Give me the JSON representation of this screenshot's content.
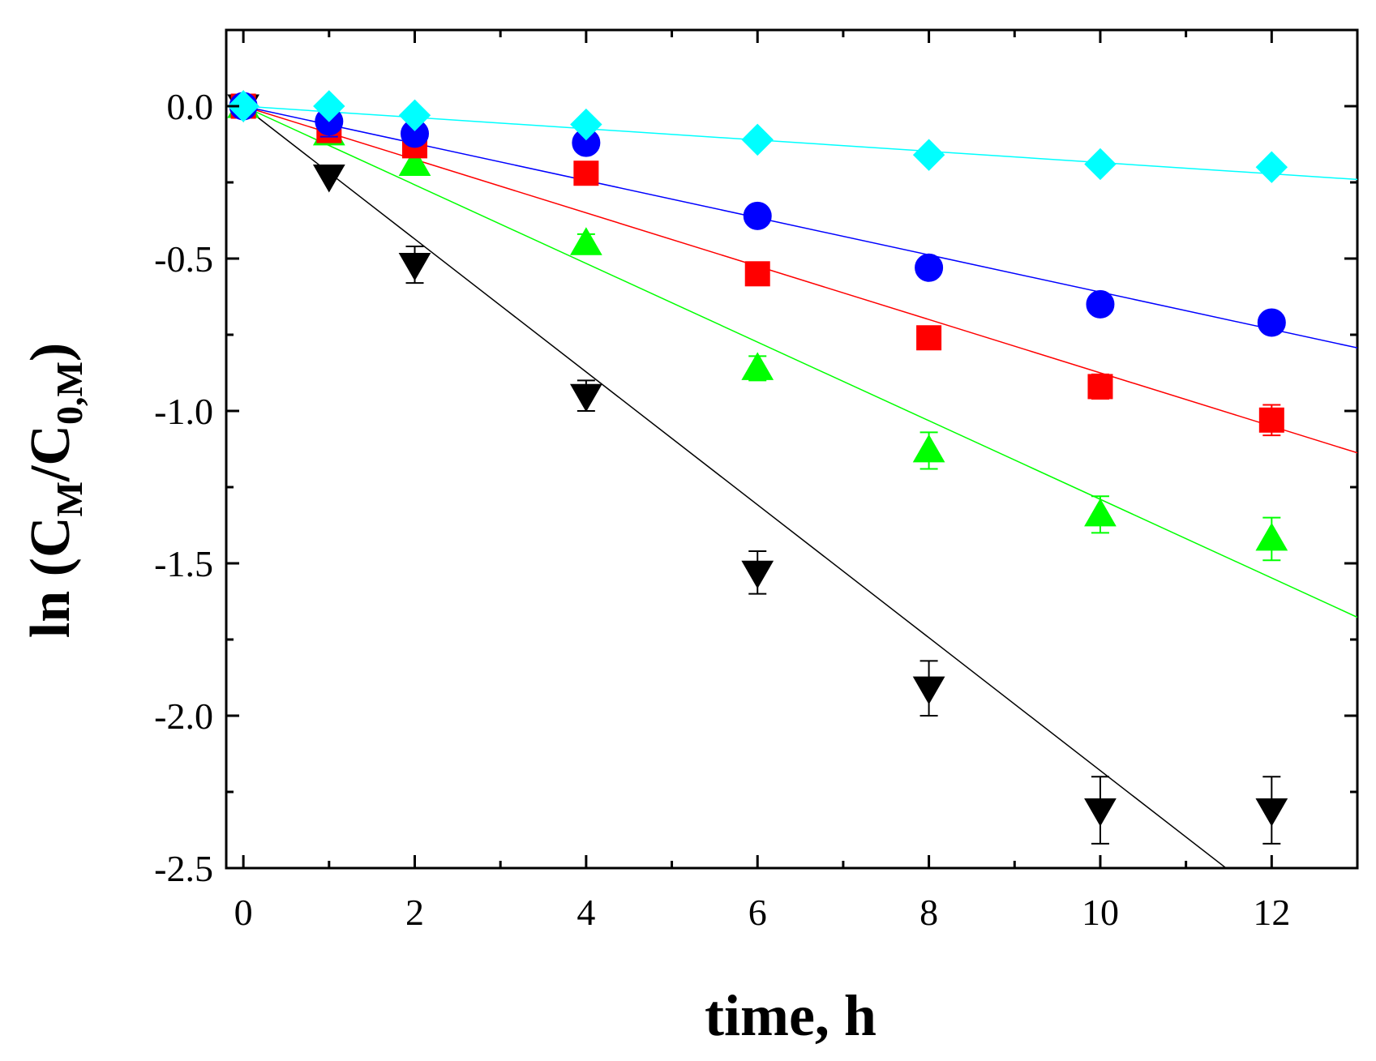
{
  "chart_data": {
    "type": "scatter",
    "title": "",
    "xlabel": "time, h",
    "ylabel": {
      "prefix": "ln (C",
      "sub1": "M",
      "mid": "/C",
      "sub2": "0,M",
      "suffix": ")"
    },
    "xlim": [
      -0.2,
      13
    ],
    "ylim": [
      -2.5,
      0.25
    ],
    "xticks": [
      0,
      2,
      4,
      6,
      8,
      10,
      12
    ],
    "xtick_labels": [
      "0",
      "2",
      "4",
      "6",
      "8",
      "10",
      "12"
    ],
    "yticks": [
      0.0,
      -0.5,
      -1.0,
      -1.5,
      -2.0,
      -2.5
    ],
    "ytick_labels": [
      "0.0",
      "-0.5",
      "-1.0",
      "-1.5",
      "-2.0",
      "-2.5"
    ],
    "grid": false,
    "series": [
      {
        "name": "black-down-triangle",
        "marker": "triangle-down",
        "color": "#000000",
        "x": [
          0,
          1,
          2,
          4,
          6,
          8,
          10,
          12
        ],
        "y": [
          0.0,
          -0.23,
          -0.52,
          -0.95,
          -1.53,
          -1.91,
          -2.31,
          -2.31
        ],
        "err": [
          0.0,
          0.0,
          0.06,
          0.05,
          0.07,
          0.09,
          0.11,
          0.11
        ],
        "fit_slope": -0.218
      },
      {
        "name": "green-triangle",
        "marker": "triangle-up",
        "color": "#00ff00",
        "x": [
          0,
          1,
          2,
          4,
          6,
          8,
          10,
          12
        ],
        "y": [
          0.0,
          -0.09,
          -0.19,
          -0.45,
          -0.86,
          -1.13,
          -1.34,
          -1.42
        ],
        "err": [
          0.0,
          0.0,
          0.03,
          0.03,
          0.04,
          0.06,
          0.06,
          0.07
        ],
        "fit_slope": -0.129
      },
      {
        "name": "red-square",
        "marker": "square",
        "color": "#ff0000",
        "x": [
          0,
          1,
          2,
          4,
          6,
          8,
          10,
          12
        ],
        "y": [
          0.0,
          -0.08,
          -0.13,
          -0.22,
          -0.55,
          -0.76,
          -0.92,
          -1.03
        ],
        "err": [
          0.0,
          0.0,
          0.0,
          0.0,
          0.0,
          0.0,
          0.04,
          0.05
        ],
        "fit_slope": -0.0875
      },
      {
        "name": "blue-circle",
        "marker": "circle",
        "color": "#0000ff",
        "x": [
          0,
          1,
          2,
          4,
          6,
          8,
          10,
          12
        ],
        "y": [
          0.0,
          -0.05,
          -0.09,
          -0.12,
          -0.36,
          -0.53,
          -0.65,
          -0.71
        ],
        "err": [
          0.0,
          0.05,
          0.0,
          0.0,
          0.0,
          0.0,
          0.0,
          0.0
        ],
        "fit_slope": -0.061
      },
      {
        "name": "cyan-diamond",
        "marker": "diamond",
        "color": "#00ffff",
        "x": [
          0,
          1,
          2,
          4,
          6,
          8,
          10,
          12
        ],
        "y": [
          0.0,
          0.0,
          -0.03,
          -0.06,
          -0.11,
          -0.16,
          -0.19,
          -0.2
        ],
        "err": [
          0.0,
          0.0,
          0.0,
          0.0,
          0.0,
          0.0,
          0.0,
          0.0
        ],
        "fit_slope": -0.0185
      }
    ]
  }
}
